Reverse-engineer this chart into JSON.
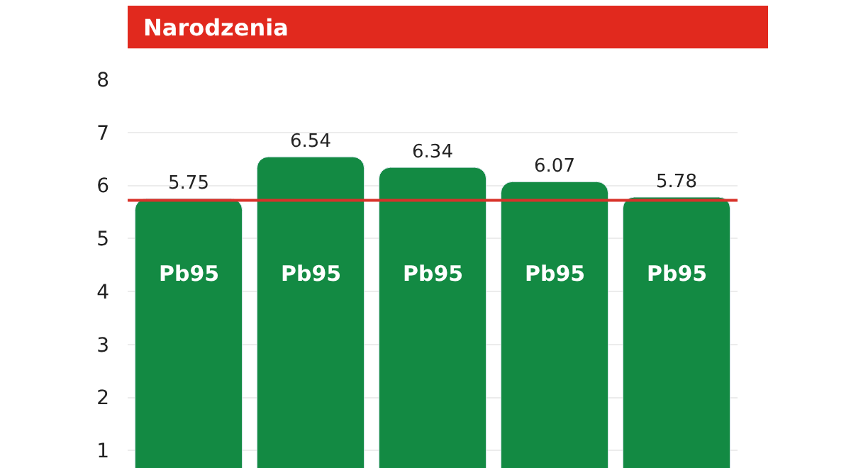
{
  "chart_data": {
    "type": "bar",
    "title": "Narodzenia",
    "categories": [
      "Pb95",
      "Pb95",
      "Pb95",
      "Pb95",
      "Pb95"
    ],
    "values": [
      5.75,
      6.54,
      6.34,
      6.07,
      5.78
    ],
    "color": "#138a43",
    "data_labels": true,
    "ylim": [
      0.67,
      8
    ],
    "yticks": [
      1,
      2,
      3,
      4,
      5,
      6,
      7,
      8
    ],
    "grid": "y",
    "ref_lines": [
      {
        "axis": "y",
        "value": 5.72,
        "color": "#d8322a"
      }
    ]
  }
}
